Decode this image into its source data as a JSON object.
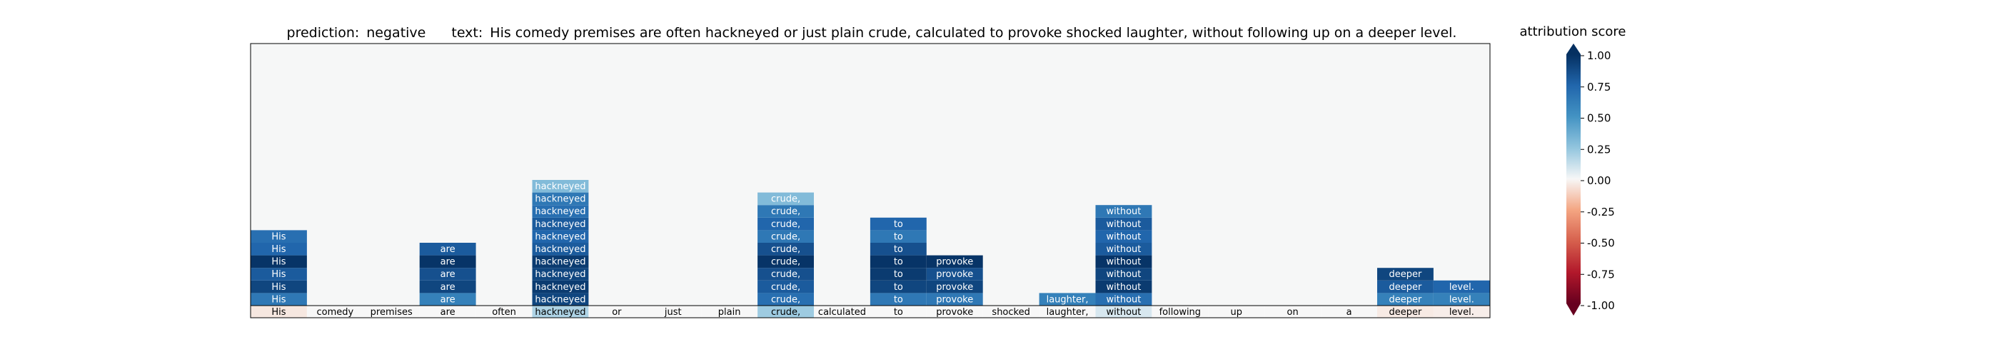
{
  "chart_data": {
    "type": "heatmap",
    "title": {
      "prediction_label": "prediction:",
      "prediction_value": "negative",
      "text_label": "text:",
      "text_value": "His comedy premises are often hackneyed or just plain crude, calculated to provoke shocked laughter, without following up on a deeper level."
    },
    "tokens": [
      "His",
      "comedy",
      "premises",
      "are",
      "often",
      "hackneyed",
      "or",
      "just",
      "plain",
      "crude,",
      "calculated",
      "to",
      "provoke",
      "shocked",
      "laughter,",
      "without",
      "following",
      "up",
      "on",
      "a",
      "deeper",
      "level."
    ],
    "base_scores": [
      -0.05,
      0,
      0,
      0,
      0,
      0.18,
      0,
      0,
      0,
      0.22,
      0,
      0,
      0,
      0,
      0,
      0.08,
      0,
      0,
      0,
      0,
      -0.04,
      -0.03
    ],
    "columns": [
      {
        "token": "His",
        "values": [
          0.65,
          0.9,
          0.8,
          0.98,
          0.75,
          0.7
        ]
      },
      {
        "token": "comedy",
        "values": []
      },
      {
        "token": "premises",
        "values": []
      },
      {
        "token": "are",
        "values": [
          0.6,
          0.9,
          0.85,
          0.98,
          0.8
        ]
      },
      {
        "token": "often",
        "values": []
      },
      {
        "token": "hackneyed",
        "values": [
          0.9,
          0.95,
          0.9,
          0.95,
          0.8,
          0.75,
          0.8,
          0.7,
          0.65,
          0.3
        ]
      },
      {
        "token": "or",
        "values": []
      },
      {
        "token": "just",
        "values": []
      },
      {
        "token": "plain",
        "values": []
      },
      {
        "token": "crude,",
        "values": [
          0.7,
          0.8,
          0.85,
          0.98,
          0.85,
          0.65,
          0.75,
          0.65,
          0.3
        ]
      },
      {
        "token": "calculated",
        "values": []
      },
      {
        "token": "to",
        "values": [
          0.65,
          0.9,
          0.95,
          0.98,
          0.85,
          0.65,
          0.75
        ]
      },
      {
        "token": "provoke",
        "values": [
          0.65,
          0.9,
          0.85,
          0.98
        ]
      },
      {
        "token": "shocked",
        "values": []
      },
      {
        "token": "laughter,",
        "values": [
          0.6
        ]
      },
      {
        "token": "without",
        "values": [
          0.7,
          0.95,
          0.9,
          0.98,
          0.8,
          0.75,
          0.8,
          0.65
        ]
      },
      {
        "token": "following",
        "values": []
      },
      {
        "token": "up",
        "values": []
      },
      {
        "token": "on",
        "values": []
      },
      {
        "token": "a",
        "values": []
      },
      {
        "token": "deeper",
        "values": [
          0.6,
          0.8,
          0.9
        ]
      },
      {
        "token": "level.",
        "values": [
          0.6,
          0.75
        ]
      }
    ],
    "rows": 10,
    "colorbar": {
      "title": "attribution score",
      "ticks": [
        "1.00",
        "0.75",
        "0.50",
        "0.25",
        "0.00",
        "-0.25",
        "-0.50",
        "-0.75",
        "-1.00"
      ],
      "range": [
        -1,
        1
      ]
    },
    "colormap": "RdBu",
    "background": "#f6f7f7"
  }
}
